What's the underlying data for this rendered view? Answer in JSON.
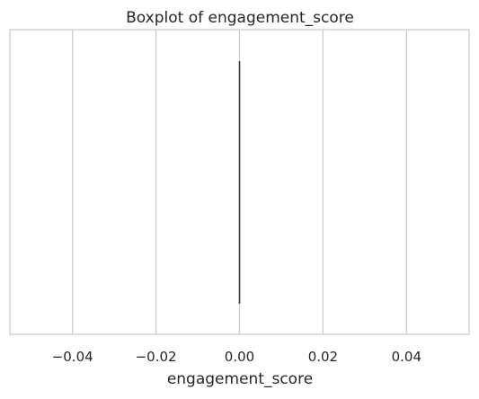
{
  "chart_data": {
    "type": "boxplot",
    "title": "Boxplot of engagement_score",
    "xlabel": "engagement_score",
    "ylabel": "",
    "xlim": [
      -0.055,
      0.055
    ],
    "xticks": [
      -0.04,
      -0.02,
      0.0,
      0.02,
      0.04
    ],
    "xtick_labels": [
      "−0.04",
      "−0.02",
      "0.00",
      "0.02",
      "0.04"
    ],
    "grid": true,
    "orientation": "horizontal",
    "box": {
      "min": 0.0,
      "q1": 0.0,
      "median": 0.0,
      "q3": 0.0,
      "max": 0.0
    },
    "colors": {
      "grid": "#cccccc",
      "frame": "#cccccc",
      "median_line": "#3d3d3d",
      "text": "#262626"
    }
  }
}
